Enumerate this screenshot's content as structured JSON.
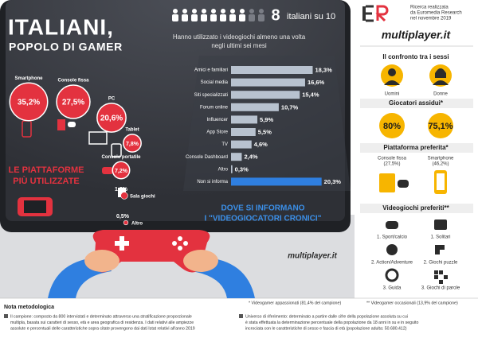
{
  "header": {
    "title_line1": "ITALIANI,",
    "title_line2": "POPOLO DI GAMER",
    "source_lines": [
      "Ricerca realizzata",
      "da Euromedia Research",
      "nel novembre 2019"
    ],
    "brand": "multiplayer.it"
  },
  "headline": {
    "count": 8,
    "label": "italiani su 10",
    "subtitle_lines": [
      "Hanno utilizzato i videogiochi almeno una volta",
      "negli ultimi sei mesi"
    ]
  },
  "chart_data": [
    {
      "type": "bubble",
      "title": [
        "LE PIATTAFORME",
        "PIÙ UTILIZZATE"
      ],
      "categories": [
        "Smartphone",
        "Console fissa",
        "PC",
        "Tablet",
        "Console portatile",
        "Sala giochi",
        "Altro"
      ],
      "values": [
        35.2,
        27.5,
        20.6,
        7.8,
        7.2,
        1.2,
        0.5
      ],
      "value_labels": [
        "35,2%",
        "27,5%",
        "20,6%",
        "7,8%",
        "7,2%",
        "1,2%",
        "0,5%"
      ],
      "color": "#e3323f"
    },
    {
      "type": "bar",
      "orientation": "horizontal",
      "title": [
        "DOVE SI INFORMANO",
        "I \"VIDEOGIOCATORI CRONICI\""
      ],
      "categories": [
        "Amici e familiari",
        "Social media",
        "Siti specializzati",
        "Forum online",
        "Influencer",
        "App Store",
        "TV",
        "Console Dashboard",
        "Altro",
        "Non si informa"
      ],
      "values": [
        18.3,
        16.6,
        15.4,
        10.7,
        5.9,
        5.5,
        4.6,
        2.4,
        0.3,
        20.3
      ],
      "value_labels": [
        "18,3%",
        "16,6%",
        "15,4%",
        "10,7%",
        "5,9%",
        "5,5%",
        "4,6%",
        "2,4%",
        "0,3%",
        "20,3%"
      ],
      "colors": [
        "#b8c2cf",
        "#b8c2cf",
        "#b8c2cf",
        "#b8c2cf",
        "#b8c2cf",
        "#b8c2cf",
        "#b8c2cf",
        "#b8c2cf",
        "#b8c2cf",
        "#2f7fe0"
      ]
    }
  ],
  "gender": {
    "title": "Il confronto tra i sessi",
    "groups": [
      "Uomini",
      "Donne"
    ],
    "frequent": {
      "title": "Giocatori assidui*",
      "values": [
        80,
        75.1
      ],
      "value_labels": [
        "80%",
        "75,1%"
      ],
      "color": "#f7b500"
    },
    "platform": {
      "title": "Piattaforma preferita*",
      "labels": [
        [
          "Console fissa",
          "(27,5%)"
        ],
        [
          "Smartphone",
          "(46,2%)"
        ]
      ]
    },
    "games": {
      "title": "Videogiochi preferiti**",
      "men": [
        "1. Sport/calcio",
        "2. Action/Adventure",
        "3. Guida"
      ],
      "women": [
        "1. Solitari",
        "2. Giochi puzzle",
        "3. Giochi di parole"
      ]
    }
  },
  "footnotes": [
    "* Videogamer appassionati (81,4% del campione)",
    "** Videogamer occasionali (13,9% del campione)"
  ],
  "methodology": {
    "title": "Nota metodologica",
    "sample": [
      "Il campione: composto da 800 intervistati e determinato attraverso una stratificazione proporzionale",
      "multipla, basata sui caratteri di sesso, età e area geografica di residenza. I dati relativi alle ampiezze",
      "assolute e percentuali delle caratteristiche sopra citate provengono dai dati Istat relativi all'anno 2019"
    ],
    "universe": [
      "Universo di riferimento: determinato a partire dalle cifre della popolazione assoluta su cui",
      "è stata effettuata la determinazione percentuale della popolazione da 18 anni in su e in seguito",
      "incrociata con le caratteristiche di sesso e fascia di età (popolazione adulta: 50.680.412)"
    ]
  }
}
